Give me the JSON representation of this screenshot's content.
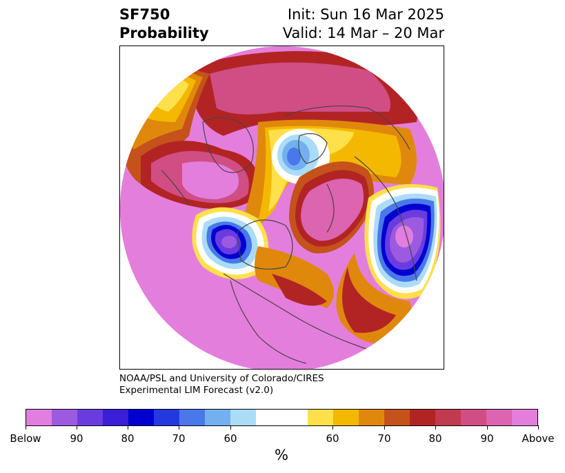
{
  "title": {
    "left_line1": "SF750",
    "left_line2": "Probability",
    "right_line1": "Init: Sun 16 Mar 2025",
    "right_line2": "Valid: 14 Mar – 20 Mar"
  },
  "credit": {
    "line1": "NOAA/PSL and University of Colorado/CIRES",
    "line2": "Experimental LIM Forecast (v2.0)"
  },
  "colorbar": {
    "unit": "%",
    "colors": [
      "#e27ee0",
      "#9b5ae0",
      "#6a3ce0",
      "#3a1ed8",
      "#0000d0",
      "#2438e0",
      "#4a78ea",
      "#72b0f0",
      "#aadcf8",
      "#ffffff",
      "#fee04a",
      "#f4b800",
      "#e0880c",
      "#c4521a",
      "#b22424",
      "#c23a50",
      "#d04e84",
      "#dc64b0",
      "#e47edc"
    ],
    "labels": [
      "Below",
      "90",
      "80",
      "70",
      "60",
      "60",
      "70",
      "80",
      "90",
      "Above"
    ]
  },
  "colors": {
    "above_max": "#e47edc",
    "below_max": "#e27ee0",
    "coast": "#444444"
  }
}
